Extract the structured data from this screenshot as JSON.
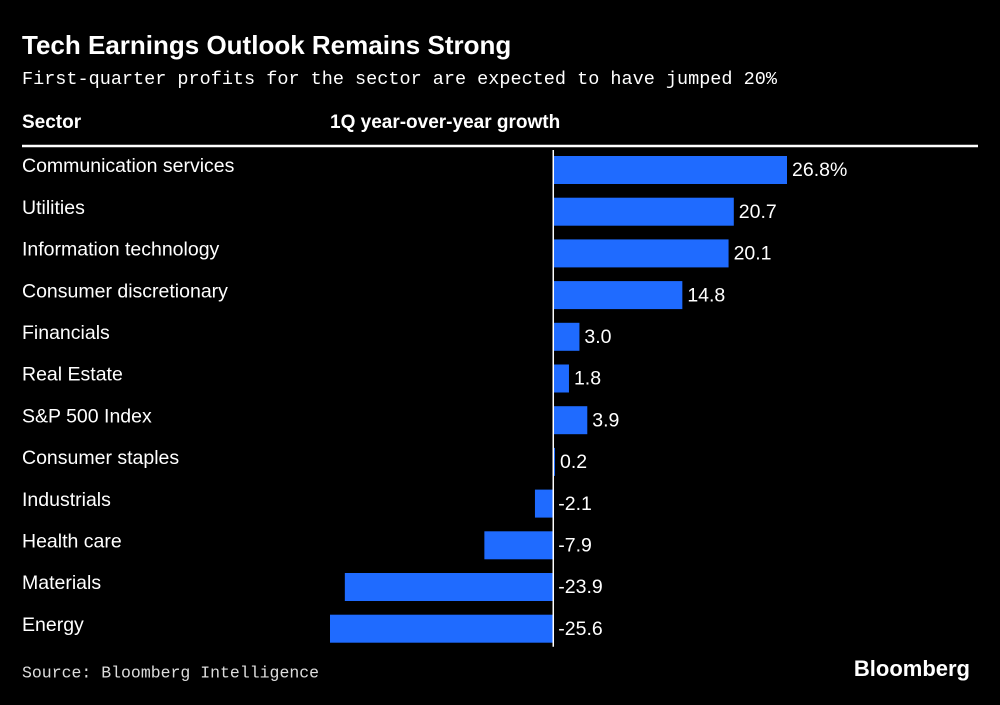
{
  "chart_data": {
    "type": "bar",
    "orientation": "horizontal",
    "title": "Tech Earnings Outlook Remains Strong",
    "subtitle": "First-quarter profits for the sector are expected to have jumped 20%",
    "category_header": "Sector",
    "value_header": "1Q year-over-year growth",
    "categories": [
      "Communication services",
      "Utilities",
      "Information technology",
      "Consumer discretionary",
      "Financials",
      "Real Estate",
      "S&P 500 Index",
      "Consumer staples",
      "Industrials",
      "Health care",
      "Materials",
      "Energy"
    ],
    "values": [
      26.8,
      20.7,
      20.1,
      14.8,
      3.0,
      1.8,
      3.9,
      0.2,
      -2.1,
      -7.9,
      -23.9,
      -25.6
    ],
    "value_labels": [
      "26.8%",
      "20.7",
      "20.1",
      "14.8",
      "3.0",
      "1.8",
      "3.9",
      "0.2",
      "-2.1",
      "-7.9",
      "-23.9",
      "-25.6"
    ],
    "color": "#1f6bff",
    "source": "Source: Bloomberg Intelligence",
    "brand": "Bloomberg"
  }
}
